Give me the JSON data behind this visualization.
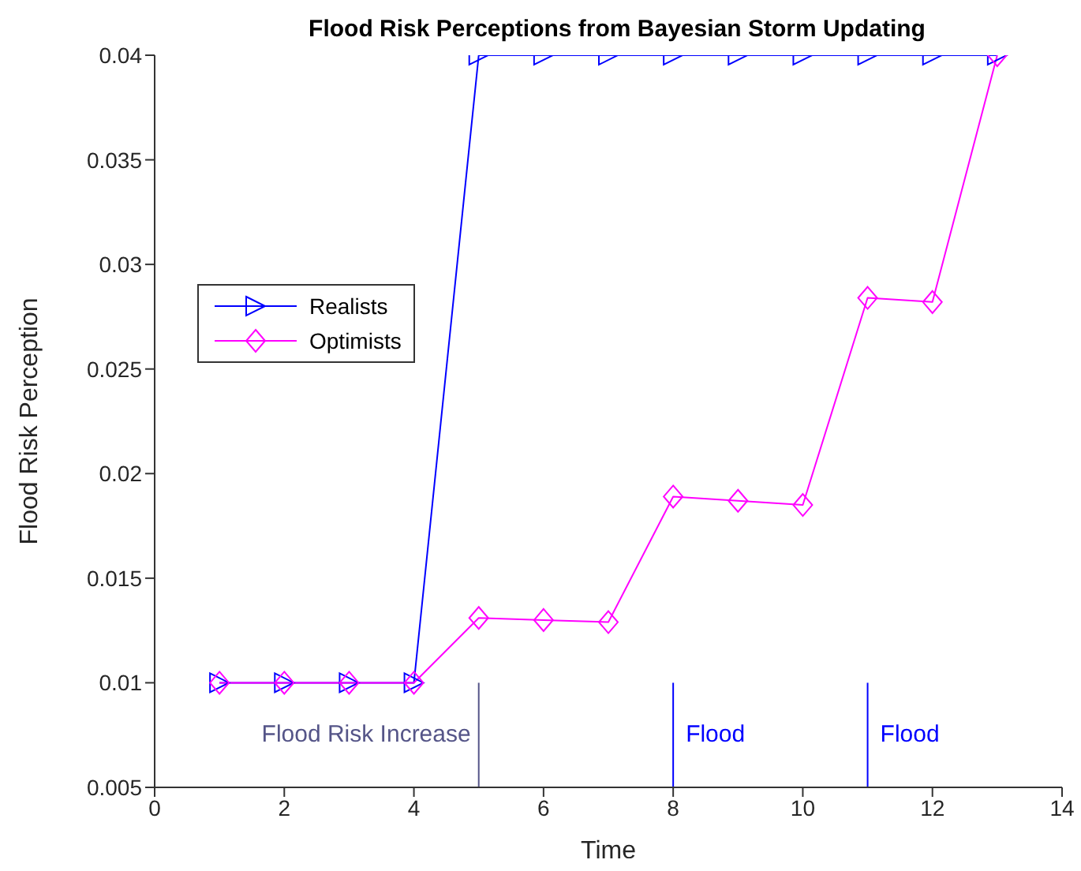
{
  "chart_data": {
    "type": "line",
    "title": "Flood Risk Perceptions from Bayesian Storm Updating",
    "xlabel": "Time",
    "ylabel": "Flood Risk Perception",
    "x": [
      1,
      2,
      3,
      4,
      5,
      6,
      7,
      8,
      9,
      10,
      11,
      12,
      13
    ],
    "series": [
      {
        "name": "Realists",
        "color": "#0000ff",
        "marker": "triangle",
        "values": [
          0.01,
          0.01,
          0.01,
          0.01,
          0.04,
          0.04,
          0.04,
          0.04,
          0.04,
          0.04,
          0.04,
          0.04,
          0.04
        ]
      },
      {
        "name": "Optimists",
        "color": "#ff00ff",
        "marker": "diamond",
        "values": [
          0.01,
          0.01,
          0.01,
          0.01,
          0.0131,
          0.013,
          0.0129,
          0.0189,
          0.0187,
          0.0185,
          0.0284,
          0.0282,
          0.04
        ]
      },
      {
        "type": "line",
        "color": "#555588",
        "marker": "none",
        "x": [
          5,
          5
        ],
        "values": [
          0.005,
          0.01
        ]
      },
      {
        "type": "line",
        "color": "#0000ff",
        "marker": "none",
        "x": [
          8,
          8
        ],
        "values": [
          0.005,
          0.01
        ]
      },
      {
        "type": "line",
        "color": "#0000ff",
        "marker": "none",
        "x": [
          11,
          11
        ],
        "values": [
          0.005,
          0.01
        ]
      }
    ],
    "annotations": [
      "Flood Risk Increase",
      "Flood",
      "Flood"
    ],
    "xlim": [
      0,
      14
    ],
    "xticks": [
      0,
      2,
      4,
      6,
      8,
      10,
      12,
      14
    ],
    "ylim": [
      0.005,
      0.04
    ],
    "yticks": [
      0.005,
      0.01,
      0.015,
      0.02,
      0.025,
      0.03,
      0.035,
      0.04
    ],
    "grid": false,
    "legend": "top left"
  }
}
